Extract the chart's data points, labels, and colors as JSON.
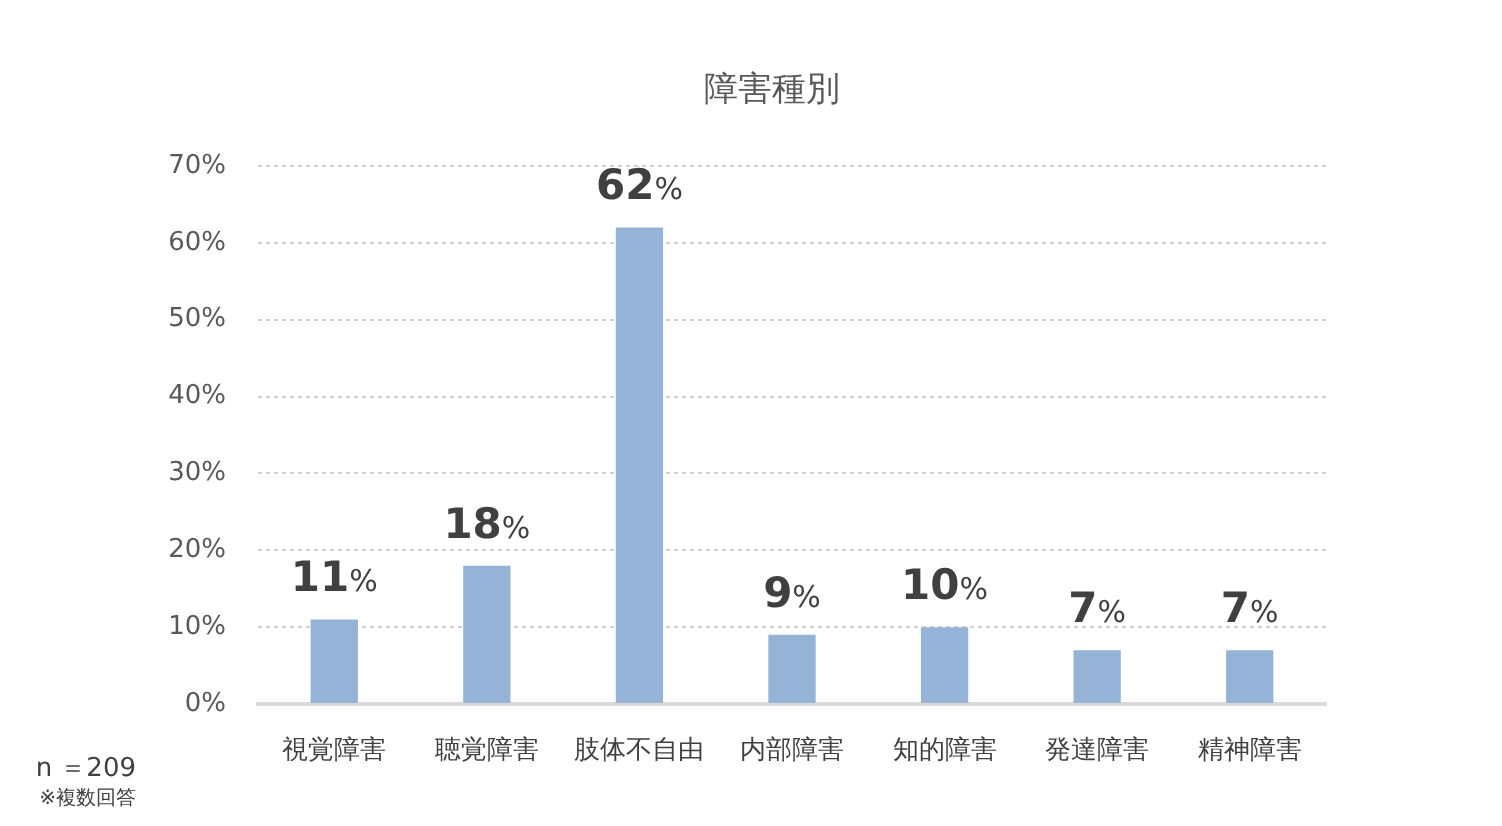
{
  "chart_data": {
    "type": "bar",
    "title": "障害種別",
    "categories": [
      "視覚障害",
      "聴覚障害",
      "肢体不自由",
      "内部障害",
      "知的障害",
      "発達障害",
      "精神障害"
    ],
    "values": [
      11,
      18,
      62,
      9,
      10,
      7,
      7
    ],
    "color": "#95b3d7",
    "value_labels": [
      "11%",
      "18%",
      "62%",
      "9%",
      "10%",
      "7%",
      "7%"
    ],
    "ylim": [
      0,
      70
    ],
    "yticks": [
      {
        "value": 0,
        "label": "0%"
      },
      {
        "value": 10,
        "label": "10%"
      },
      {
        "value": 20,
        "label": "20%"
      },
      {
        "value": 30,
        "label": "30%"
      },
      {
        "value": 40,
        "label": "40%"
      },
      {
        "value": 50,
        "label": "50%"
      },
      {
        "value": 60,
        "label": "60%"
      },
      {
        "value": 70,
        "label": "70%"
      }
    ],
    "grid": "y",
    "annotations": [
      "n ＝209",
      "※複数回答"
    ]
  }
}
